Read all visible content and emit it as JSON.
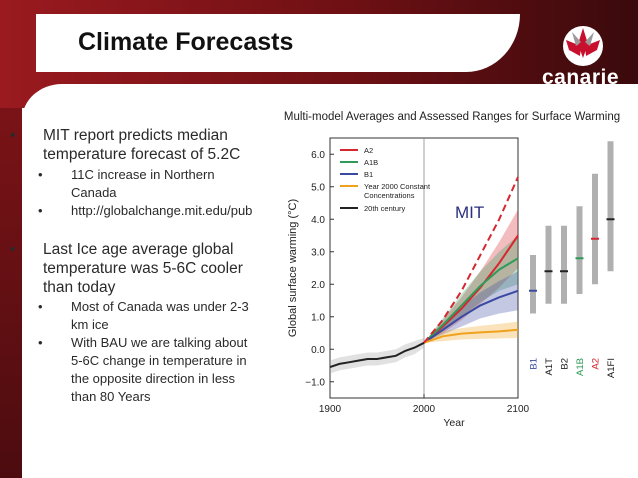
{
  "slide": {
    "title": "Climate Forecasts",
    "logo_text": "canarie",
    "colors": {
      "band_red": "#8a1519",
      "band_dark": "#3a0a0c"
    }
  },
  "bullets": [
    {
      "level": 1,
      "text_lines": [
        "MIT report predicts median",
        "temperature forecast of 5.2C"
      ]
    },
    {
      "level": 2,
      "text_lines": [
        "11C increase in Northern",
        "Canada"
      ]
    },
    {
      "level": 2,
      "text_lines": [
        "http://globalchange.mit.edu/pub"
      ]
    },
    {
      "level": 1,
      "text_lines": [
        "Last Ice age average global",
        "temperature was 5-6C cooler",
        "than today"
      ]
    },
    {
      "level": 2,
      "text_lines": [
        "Most of Canada was under 2-3",
        "km ice"
      ]
    },
    {
      "level": 2,
      "text_lines": [
        "With BAU we are talking about",
        "5-6C change in temperature in",
        "the opposite direction in less",
        "than 80 Years"
      ]
    }
  ],
  "chart_data": {
    "type": "line",
    "title": "Multi-model Averages and Assessed Ranges for Surface Warming",
    "xlabel": "Year",
    "ylabel": "Global surface warming (°C)",
    "xlim": [
      1900,
      2100
    ],
    "ylim": [
      -1.5,
      6.5
    ],
    "x_ticks": [
      "1900",
      "2000",
      "2100"
    ],
    "y_ticks": [
      "6.0",
      "5.0",
      "4.0",
      "3.0",
      "2.0",
      "1.0",
      "0.0",
      "−1.0"
    ],
    "y_tick_values": [
      6,
      5,
      4,
      3,
      2,
      1,
      0,
      -1
    ],
    "annotation": "MIT",
    "series": [
      {
        "name": "A2",
        "color": "#d7262e",
        "x": [
          2000,
          2020,
          2040,
          2060,
          2080,
          2100
        ],
        "y": [
          0.2,
          0.7,
          1.25,
          1.9,
          2.65,
          3.5
        ],
        "lower": [
          0.2,
          0.5,
          0.9,
          1.4,
          1.9,
          2.5
        ],
        "upper": [
          0.2,
          0.9,
          1.6,
          2.4,
          3.3,
          4.3
        ]
      },
      {
        "name": "A1B",
        "color": "#2e9b58",
        "x": [
          2000,
          2020,
          2040,
          2060,
          2080,
          2100
        ],
        "y": [
          0.2,
          0.75,
          1.35,
          1.95,
          2.45,
          2.8
        ],
        "lower": [
          0.2,
          0.55,
          1.0,
          1.45,
          1.8,
          2.0
        ],
        "upper": [
          0.2,
          0.95,
          1.7,
          2.4,
          3.0,
          3.5
        ]
      },
      {
        "name": "B1",
        "color": "#3a4aa0",
        "x": [
          2000,
          2020,
          2040,
          2060,
          2080,
          2100
        ],
        "y": [
          0.2,
          0.6,
          1.0,
          1.35,
          1.6,
          1.8
        ],
        "lower": [
          0.2,
          0.45,
          0.7,
          0.95,
          1.1,
          1.2
        ],
        "upper": [
          0.2,
          0.8,
          1.3,
          1.75,
          2.1,
          2.4
        ]
      },
      {
        "name": "Year 2000 Constant Concentrations",
        "color": "#f0a21c",
        "x": [
          2000,
          2020,
          2040,
          2060,
          2080,
          2100
        ],
        "y": [
          0.2,
          0.4,
          0.48,
          0.52,
          0.55,
          0.6
        ],
        "lower": [
          0.2,
          0.25,
          0.3,
          0.32,
          0.33,
          0.35
        ],
        "upper": [
          0.2,
          0.55,
          0.65,
          0.72,
          0.78,
          0.85
        ]
      },
      {
        "name": "20th century",
        "color": "#222222",
        "x": [
          1900,
          1910,
          1920,
          1930,
          1940,
          1950,
          1960,
          1970,
          1980,
          1990,
          2000
        ],
        "y": [
          -0.55,
          -0.45,
          -0.4,
          -0.35,
          -0.3,
          -0.3,
          -0.25,
          -0.2,
          -0.05,
          0.05,
          0.2
        ],
        "lower": [
          -0.75,
          -0.65,
          -0.6,
          -0.55,
          -0.5,
          -0.5,
          -0.45,
          -0.4,
          -0.25,
          -0.15,
          0.05
        ],
        "upper": [
          -0.35,
          -0.25,
          -0.2,
          -0.15,
          -0.1,
          -0.1,
          -0.05,
          0.0,
          0.15,
          0.25,
          0.35
        ]
      }
    ],
    "mit_projection": {
      "color": "#d7262e",
      "x": [
        2000,
        2020,
        2040,
        2060,
        2080,
        2100
      ],
      "y": [
        0.2,
        0.9,
        1.8,
        2.9,
        4.0,
        5.3
      ]
    },
    "ranges": [
      {
        "name": "B1",
        "color": "#3a4aa0",
        "low": 1.1,
        "high": 2.9,
        "best": 1.8
      },
      {
        "name": "A1T",
        "color": "#222222",
        "low": 1.4,
        "high": 3.8,
        "best": 2.4
      },
      {
        "name": "B2",
        "color": "#222222",
        "low": 1.4,
        "high": 3.8,
        "best": 2.4
      },
      {
        "name": "A1B",
        "color": "#2e9b58",
        "low": 1.7,
        "high": 4.4,
        "best": 2.8
      },
      {
        "name": "A2",
        "color": "#d7262e",
        "low": 2.0,
        "high": 5.4,
        "best": 3.4
      },
      {
        "name": "A1FI",
        "color": "#222222",
        "low": 2.4,
        "high": 6.4,
        "best": 4.0
      }
    ]
  }
}
